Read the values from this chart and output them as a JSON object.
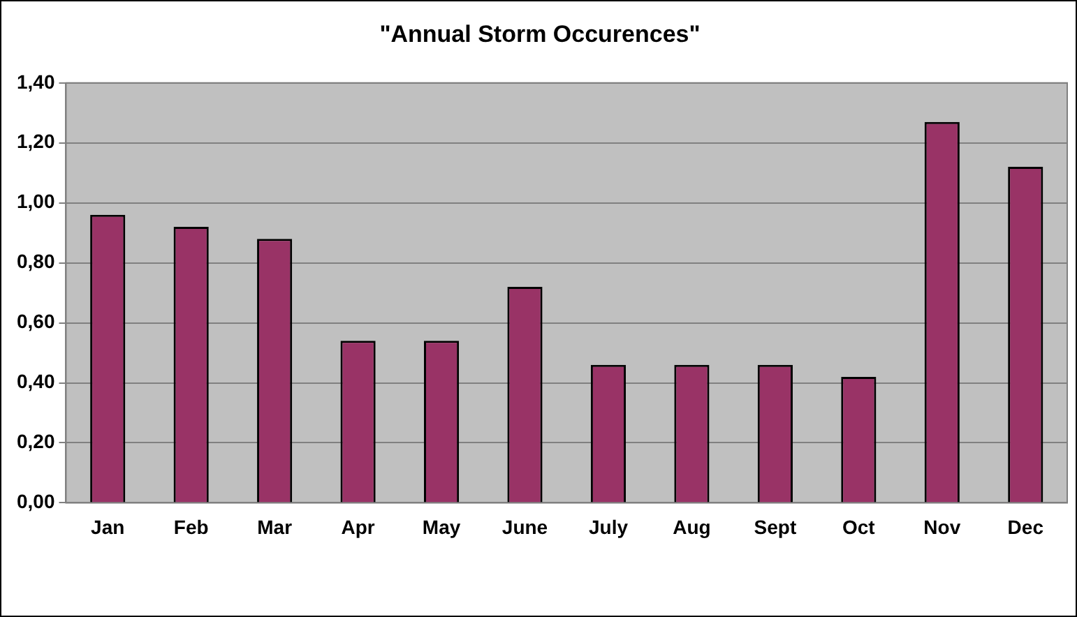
{
  "chart_data": {
    "type": "bar",
    "title": "\"Annual Storm Occurences\"",
    "categories": [
      "Jan",
      "Feb",
      "Mar",
      "Apr",
      "May",
      "June",
      "July",
      "Aug",
      "Sept",
      "Oct",
      "Nov",
      "Dec"
    ],
    "values": [
      0.96,
      0.92,
      0.88,
      0.54,
      0.54,
      0.72,
      0.46,
      0.46,
      0.46,
      0.42,
      1.27,
      1.12
    ],
    "color": "#993366",
    "ylim": [
      0,
      1.4
    ],
    "yticks": [
      {
        "value": 0,
        "label": "0,00"
      },
      {
        "value": 0.2,
        "label": "0,20"
      },
      {
        "value": 0.4,
        "label": "0,40"
      },
      {
        "value": 0.6,
        "label": "0,60"
      },
      {
        "value": 0.8,
        "label": "0,80"
      },
      {
        "value": 1,
        "label": "1,00"
      },
      {
        "value": 1.2,
        "label": "1,20"
      },
      {
        "value": 1.4,
        "label": "1,40"
      }
    ],
    "grid": "y",
    "legend": false
  }
}
